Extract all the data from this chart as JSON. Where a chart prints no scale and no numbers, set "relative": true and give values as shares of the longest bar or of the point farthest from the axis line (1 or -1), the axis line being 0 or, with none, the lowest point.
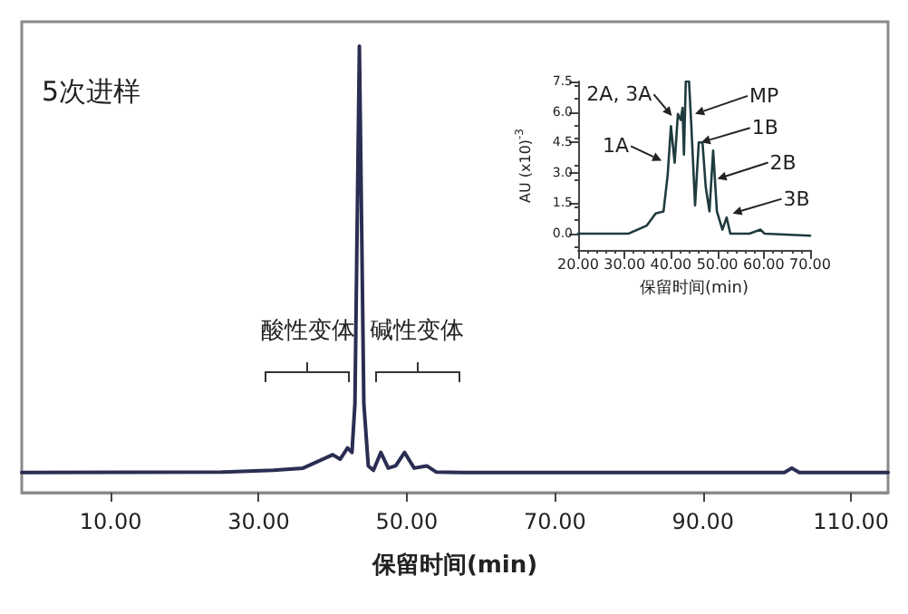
{
  "chart_data": [
    {
      "type": "line",
      "title": "5次进样",
      "xlabel": "保留时间(min)",
      "relative": true,
      "grid": false,
      "marker": "none",
      "line_style": "solid",
      "x": [
        -2,
        25,
        32,
        36,
        40,
        41,
        42,
        42.6,
        43,
        43.6,
        44.2,
        44.8,
        45.5,
        46.5,
        47.5,
        48.5,
        49.7,
        51,
        52.7,
        54,
        58,
        66,
        101,
        102,
        103,
        115
      ],
      "series": [
        {
          "color": "#2b2d52",
          "values": [
            0.045,
            0.046,
            0.05,
            0.055,
            0.085,
            0.075,
            0.1,
            0.09,
            0.2,
            1,
            0.2,
            0.06,
            0.05,
            0.09,
            0.055,
            0.06,
            0.09,
            0.055,
            0.06,
            0.046,
            0.045,
            0.045,
            0.045,
            0.055,
            0.045,
            0.045
          ]
        }
      ],
      "xlim": [
        -2,
        115
      ],
      "xticks": [
        {
          "value": 10,
          "label": "10.00"
        },
        {
          "value": 30,
          "label": "30.00"
        },
        {
          "value": 50,
          "label": "50.00"
        },
        {
          "value": 70,
          "label": "70.00"
        },
        {
          "value": 90,
          "label": "90.00"
        },
        {
          "value": 110,
          "label": "110.00"
        }
      ],
      "annotations": [
        "酸性变体",
        "碱性变体"
      ]
    },
    {
      "type": "line",
      "xlabel": "保留时间(min)",
      "ylabel": "AU (x10)$^{-3}$",
      "grid": false,
      "marker": "none",
      "line_style": "solid",
      "x": [
        20,
        30.8,
        34.8,
        36.7,
        38.4,
        39.3,
        40,
        40.8,
        41.5,
        42.1,
        42.5,
        42.8,
        43.2,
        43.9,
        44.4,
        45.2,
        46,
        46.8,
        47.5,
        48.3,
        49.1,
        49.9,
        51.1,
        52,
        52.8,
        56.9,
        59.3,
        60.2,
        70
      ],
      "series": [
        {
          "color": "#1f3b3e",
          "values": [
            0,
            0,
            0.4,
            1,
            1.1,
            2.9,
            5.3,
            3.5,
            5.9,
            5.6,
            6.2,
            3.9,
            7.5,
            7.5,
            5.3,
            1.4,
            4.5,
            4.5,
            2.3,
            1.1,
            4.1,
            1.1,
            0.2,
            0.8,
            0,
            0,
            0.2,
            0,
            -0.1
          ]
        }
      ],
      "xlim": [
        20,
        70
      ],
      "xticks": [
        {
          "value": 20,
          "label": "20.00"
        },
        {
          "value": 30,
          "label": "30.00"
        },
        {
          "value": 40,
          "label": "40.00"
        },
        {
          "value": 50,
          "label": "50.00"
        },
        {
          "value": 60,
          "label": "60.00"
        },
        {
          "value": 70,
          "label": "70.00"
        }
      ],
      "ylim": [
        -0.8,
        7.5
      ],
      "yticks": [
        {
          "value": 0,
          "label": "0.0"
        },
        {
          "value": 1.5,
          "label": "1.5"
        },
        {
          "value": 3,
          "label": "3.0"
        },
        {
          "value": 4.5,
          "label": "4.5"
        },
        {
          "value": 6,
          "label": "6.0"
        },
        {
          "value": 7.5,
          "label": "7.5"
        }
      ],
      "annotations": [
        {
          "text": "1A",
          "x": 38,
          "y": 3.6
        },
        {
          "text": "2A, 3A",
          "x": 40.2,
          "y": 5.8
        },
        {
          "text": "MP",
          "x": 45.2,
          "y": 5.9
        },
        {
          "text": "1B",
          "x": 46.5,
          "y": 4.5
        },
        {
          "text": "2B",
          "x": 50,
          "y": 2.7
        },
        {
          "text": "3B",
          "x": 53.3,
          "y": 1
        }
      ]
    }
  ]
}
